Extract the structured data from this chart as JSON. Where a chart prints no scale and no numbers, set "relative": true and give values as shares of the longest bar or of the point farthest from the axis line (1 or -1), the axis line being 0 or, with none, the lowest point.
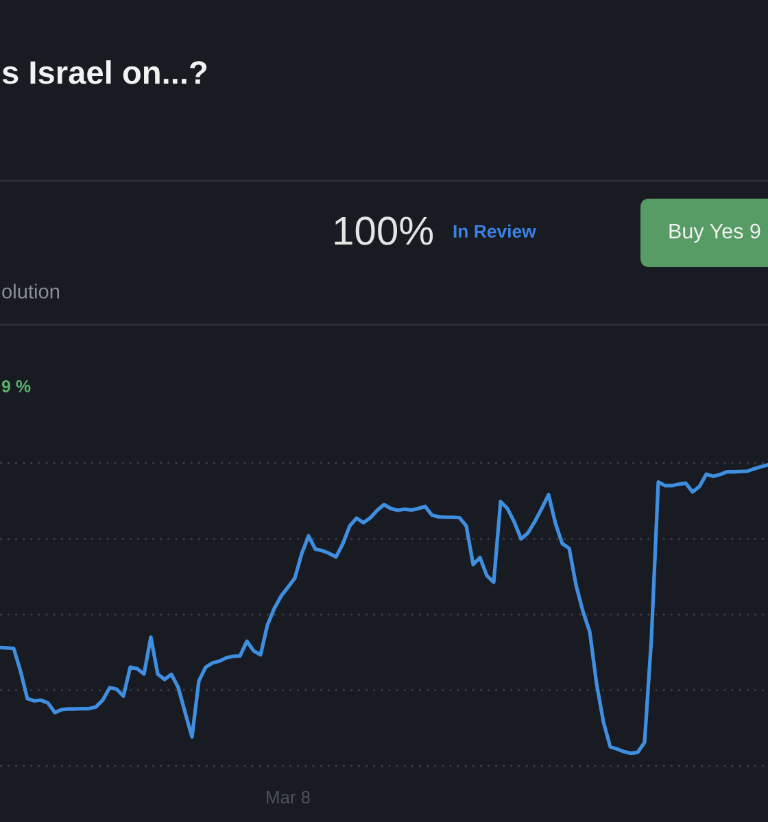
{
  "chart_data": {
    "type": "line",
    "title": "s Israel on...?",
    "annotations": [
      "100%",
      "In Review",
      "Buy Yes 9",
      "olution",
      "9 %",
      "Mar 8"
    ],
    "categories": [
      null,
      null,
      null,
      null,
      null,
      null,
      null,
      null,
      null,
      null,
      null,
      null,
      null,
      null,
      null,
      null,
      null,
      null,
      null,
      null,
      null,
      null,
      null,
      null,
      null,
      null,
      null,
      null,
      null,
      null,
      null,
      null,
      null,
      null,
      null,
      null,
      null,
      null,
      null,
      null,
      null,
      null,
      null,
      null,
      null,
      null,
      null,
      null,
      null,
      null,
      null,
      null,
      null,
      null,
      null,
      null,
      null,
      null,
      null,
      null,
      null,
      null,
      null,
      null,
      null,
      null,
      null,
      null,
      null,
      null,
      null,
      null,
      null,
      null,
      null,
      null,
      null,
      null,
      null,
      null,
      null,
      null,
      null,
      null,
      null,
      null,
      null,
      null,
      null,
      null,
      null,
      null,
      null,
      null,
      null,
      null,
      null,
      null,
      null,
      null,
      null,
      null,
      null,
      null,
      null,
      null,
      null,
      null,
      null,
      null,
      null,
      null,
      null
    ],
    "series": [
      {
        "color": "#3f8ee0",
        "values": [
          0.393,
          0.392,
          0.39,
          0.314,
          0.223,
          0.216,
          0.218,
          0.209,
          0.177,
          0.187,
          0.189,
          0.189,
          0.19,
          0.19,
          0.196,
          0.219,
          0.26,
          0.255,
          0.232,
          0.328,
          0.323,
          0.305,
          0.428,
          0.305,
          0.287,
          0.304,
          0.26,
          0.177,
          0.096,
          0.282,
          0.328,
          0.342,
          0.348,
          0.359,
          0.364,
          0.365,
          0.414,
          0.382,
          0.369,
          0.468,
          0.523,
          0.564,
          0.594,
          0.624,
          0.705,
          0.764,
          0.72,
          0.715,
          0.706,
          0.694,
          0.738,
          0.797,
          0.823,
          0.808,
          0.824,
          0.849,
          0.868,
          0.855,
          0.849,
          0.853,
          0.85,
          0.855,
          0.862,
          0.833,
          0.827,
          0.826,
          0.826,
          0.825,
          0.797,
          0.669,
          0.692,
          0.632,
          0.61,
          0.878,
          0.855,
          0.81,
          0.754,
          0.774,
          0.812,
          0.855,
          0.901,
          0.806,
          0.738,
          0.723,
          0.601,
          0.514,
          0.446,
          0.273,
          0.146,
          0.063,
          0.056,
          0.047,
          0.042,
          0.045,
          0.078,
          0.424,
          0.943,
          0.931,
          0.931,
          0.936,
          0.939,
          0.91,
          0.928,
          0.969,
          0.962,
          0.968,
          0.977,
          0.977,
          0.978,
          0.979,
          0.987,
          0.994,
          1
        ]
      }
    ],
    "relative": true,
    "grid": "y",
    "marker": "none",
    "line_style": "solid"
  }
}
